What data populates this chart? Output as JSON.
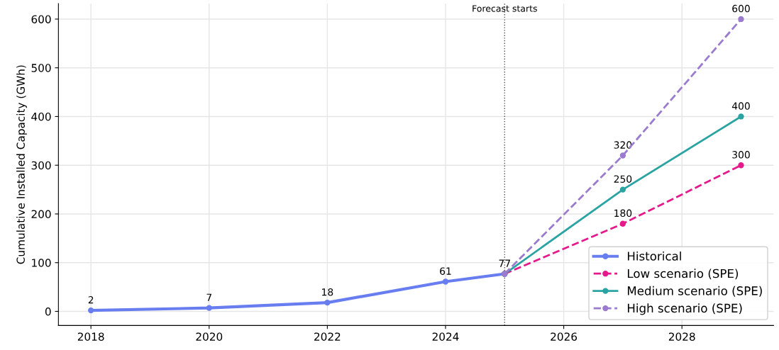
{
  "chart_data": {
    "type": "line",
    "ylabel": "Cumulative Installed Capacity (GWh)",
    "xlim": [
      2017.45,
      2029.55
    ],
    "xticks": [
      2018,
      2020,
      2022,
      2024,
      2026,
      2028
    ],
    "ylim": [
      -29,
      632
    ],
    "yticks": [
      0,
      100,
      200,
      300,
      400,
      500,
      600
    ],
    "grid": true,
    "legend": "bottom right",
    "marker": "circle",
    "ref_lines": [
      {
        "axis": "x",
        "value": 2025,
        "label": "Forecast starts",
        "color": "#555555",
        "line_style": "dotted"
      }
    ],
    "series": [
      {
        "name": "Historical",
        "color": "#687ef0",
        "line_style": "solid",
        "x": [
          2018,
          2020,
          2022,
          2024,
          2025
        ],
        "values": [
          2,
          7,
          18,
          61,
          77
        ],
        "value_labels": [
          "2",
          "7",
          "18",
          "61",
          "77"
        ]
      },
      {
        "name": "Low scenario (SPE)",
        "color": "#e6198c",
        "line_style": "dashed",
        "x": [
          2025,
          2027,
          2029
        ],
        "values": [
          77,
          180,
          300
        ],
        "value_labels": [
          null,
          "180",
          "300"
        ]
      },
      {
        "name": "Medium scenario (SPE)",
        "color": "#2aa3a3",
        "line_style": "solid",
        "x": [
          2025,
          2027,
          2029
        ],
        "values": [
          77,
          250,
          400
        ],
        "value_labels": [
          null,
          "250",
          "400"
        ]
      },
      {
        "name": "High scenario (SPE)",
        "color": "#9b7bd0",
        "line_style": "dashed",
        "x": [
          2025,
          2027,
          2029
        ],
        "values": [
          77,
          320,
          600
        ],
        "value_labels": [
          null,
          "320",
          "600"
        ]
      }
    ]
  }
}
